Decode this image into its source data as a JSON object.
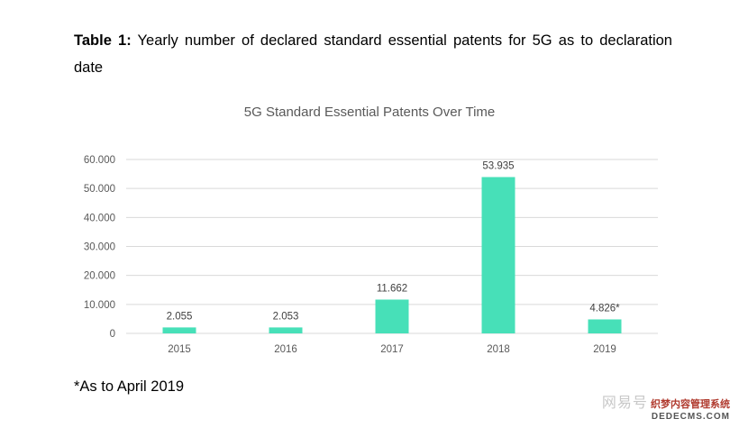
{
  "caption": {
    "label": "Table 1:",
    "text": " Yearly number of declared standard essential patents for 5G as to declaration date"
  },
  "footnote": "*As to April 2019",
  "watermark": {
    "brand": "网易号",
    "cms": "织梦内容管理系统",
    "url": "DEDECMS.COM"
  },
  "chart_data": {
    "type": "bar",
    "title": "5G Standard Essential Patents Over Time",
    "xlabel": "",
    "ylabel": "",
    "categories": [
      "2015",
      "2016",
      "2017",
      "2018",
      "2019"
    ],
    "values": [
      2055,
      2053,
      11662,
      53935,
      4826
    ],
    "data_labels": [
      "2.055",
      "2.053",
      "11.662",
      "53.935",
      "4.826*"
    ],
    "ylim": [
      0,
      60000
    ],
    "yticks": [
      0,
      10000,
      20000,
      30000,
      40000,
      50000,
      60000
    ],
    "ytick_labels": [
      "0",
      "10.000",
      "20.000",
      "30.000",
      "40.000",
      "50.000",
      "60.000"
    ],
    "grid": true,
    "legend": "none",
    "bar_color": "#47e0b8",
    "grid_color": "#d9d9d9",
    "text_color": "#595959"
  }
}
